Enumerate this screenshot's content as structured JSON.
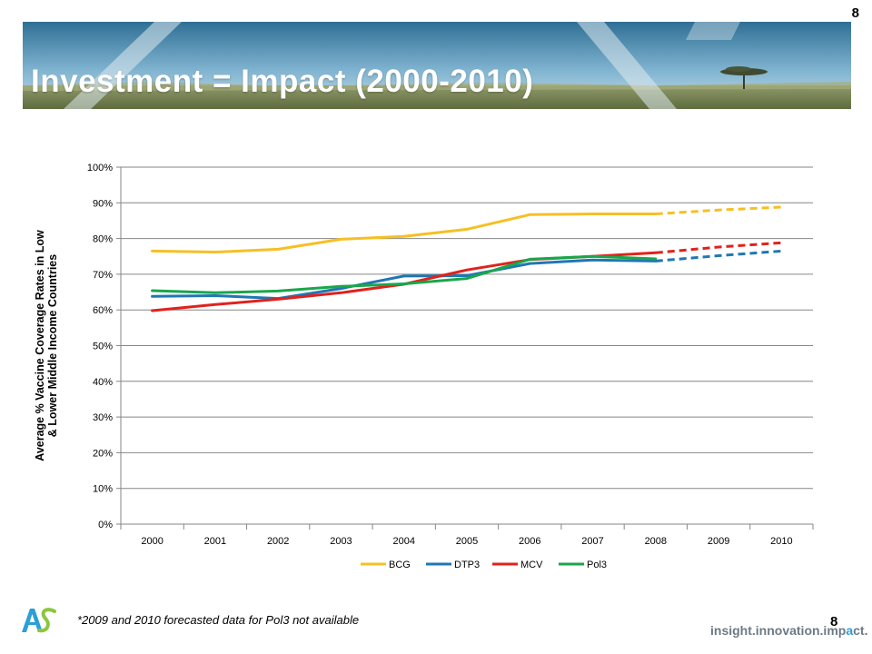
{
  "slide": {
    "title": "Investment = Impact (2000-2010)",
    "page_number": "8",
    "footnote": "*2009 and 2010 forecasted data for Pol3 not available",
    "tagline_main": "insight.innovation.imp",
    "tagline_accent": "a",
    "tagline_end": "ct.",
    "logo_name": "as-logo-icon"
  },
  "chart_data": {
    "type": "line",
    "title": "",
    "xlabel": "",
    "ylabel_lines": [
      "Average % Vaccine Coverage Rates in Low",
      "& Lower Middle Income Countries"
    ],
    "categories": [
      "2000",
      "2001",
      "2002",
      "2003",
      "2004",
      "2005",
      "2006",
      "2007",
      "2008",
      "2009",
      "2010"
    ],
    "ylim": [
      0,
      100
    ],
    "yticks": [
      "0%",
      "10%",
      "20%",
      "30%",
      "40%",
      "50%",
      "60%",
      "70%",
      "80%",
      "90%",
      "100%"
    ],
    "grid": true,
    "legend_position": "bottom",
    "forecast_start_index": 8,
    "series": [
      {
        "name": "BCG",
        "color": "#f5c023",
        "values": [
          76.5,
          76.2,
          77,
          79.8,
          80.6,
          82.6,
          86.7,
          86.9,
          86.9,
          88,
          88.8
        ]
      },
      {
        "name": "DTP3",
        "color": "#1f77b4",
        "values": [
          63.8,
          64,
          63.2,
          66,
          69.5,
          69.6,
          73,
          74,
          73.7,
          75.2,
          76.5
        ]
      },
      {
        "name": "MCV",
        "color": "#e0221b",
        "values": [
          59.8,
          61.5,
          63,
          64.8,
          67.2,
          71.2,
          74.1,
          75,
          76,
          77.6,
          78.8
        ]
      },
      {
        "name": "Pol3",
        "color": "#1aa64b",
        "values": [
          65.4,
          64.8,
          65.3,
          66.6,
          67.3,
          68.8,
          74.2,
          75,
          74.3,
          null,
          null
        ]
      }
    ]
  }
}
